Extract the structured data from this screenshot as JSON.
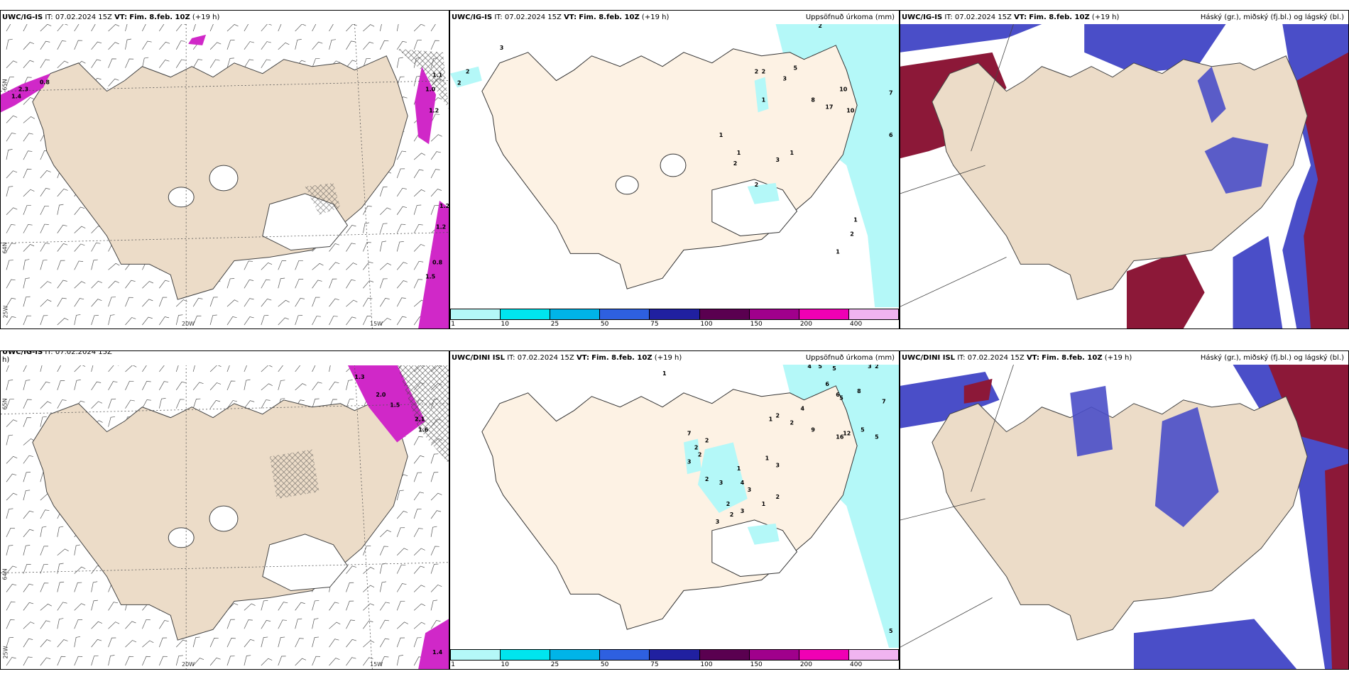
{
  "panels": {
    "top_left": {
      "lon_labels": [
        "20W",
        "15W"
      ],
      "lat_labels": [
        "65N",
        "64N",
        "25W"
      ],
      "wind_values": [
        "2.3",
        "0.8",
        "1.4",
        "1.1",
        "1.0",
        "1.2",
        "1.2",
        "1.2",
        "0.8",
        "1.5"
      ]
    },
    "top_mid": {
      "model": "UWC/IG-IS",
      "it_label": "IT:",
      "it_value": "07.02.2024 15Z",
      "vt_label": "VT:",
      "vt_value": "Fim. 8.feb. 10Z",
      "lead": "(+19 h)",
      "field_title": "Uppsöfnuð úrkoma (mm)",
      "numbers": [
        "2",
        "3",
        "2",
        "2",
        "2",
        "2",
        "5",
        "3",
        "10",
        "7",
        "1",
        "8",
        "17",
        "10",
        "6",
        "1",
        "1",
        "2",
        "3",
        "2",
        "1",
        "1",
        "2",
        "1"
      ]
    },
    "top_right": {
      "model": "UWC/IG-IS",
      "it_label": "IT:",
      "it_value": "07.02.2024 15Z",
      "vt_label": "VT:",
      "vt_value": "Fim. 8.feb. 10Z",
      "lead": "(+19 h)",
      "field_title": "Háský (gr.), miðský (fj.bl.) og lágský (bl.)"
    },
    "bottom_left": {
      "header_visible": "h)",
      "lon_labels": [
        "20W",
        "15W"
      ],
      "lat_labels": [
        "65N",
        "64N",
        "25W"
      ],
      "wind_values": [
        "1.3",
        "2.0",
        "1.5",
        "2.1",
        "1.6",
        "1.4"
      ]
    },
    "bottom_mid": {
      "model": "UWC/DINI ISL",
      "it_label": "IT:",
      "it_value": "07.02.2024 15Z",
      "vt_label": "VT:",
      "vt_value": "Fim. 8.feb. 10Z",
      "lead": "(+19 h)",
      "field_title": "Uppsöfnuð úrkoma (mm)",
      "numbers": [
        "1",
        "4",
        "5",
        "5",
        "3",
        "2",
        "6",
        "6",
        "5",
        "8",
        "7",
        "1",
        "2",
        "2",
        "4",
        "2",
        "7",
        "2",
        "2",
        "3",
        "9",
        "16",
        "12",
        "5",
        "5",
        "2",
        "3",
        "1",
        "4",
        "3",
        "2",
        "3",
        "1",
        "2",
        "3",
        "2",
        "1",
        "3",
        "5"
      ]
    },
    "bottom_right": {
      "model": "UWC/DINI ISL",
      "it_label": "IT:",
      "it_value": "07.02.2024 15Z",
      "vt_label": "VT:",
      "vt_value": "Fim. 8.feb. 10Z",
      "lead": "(+19 h)",
      "field_title": "Háský (gr.), miðský (fj.bl.) og lágský (bl.)"
    }
  },
  "top_left_header": {
    "model": "UWC/IG-IS",
    "it_label": "IT:",
    "it_value": "07.02.2024 15Z",
    "vt_label": "VT:",
    "vt_value": "Fim. 8.feb. 10Z",
    "lead": "(+19 h)"
  },
  "colorbar": {
    "labels": [
      "1",
      "10",
      "25",
      "50",
      "75",
      "100",
      "150",
      "200",
      "400"
    ],
    "colors": [
      "#b4f8f8",
      "#00e5ee",
      "#00b4e8",
      "#2e60e0",
      "#2020a0",
      "#5a0050",
      "#a0008c",
      "#f000b4",
      "#f0b4f0"
    ]
  },
  "colors": {
    "land": "#ecdcc8",
    "land_light": "#fdf2e4",
    "precip": "#b4f8f8",
    "high_cloud": "#8c1838",
    "mid_cloud": "#4a4ec8",
    "low_cloud": "#50b4f0",
    "wind_mag": "#d028c8"
  }
}
